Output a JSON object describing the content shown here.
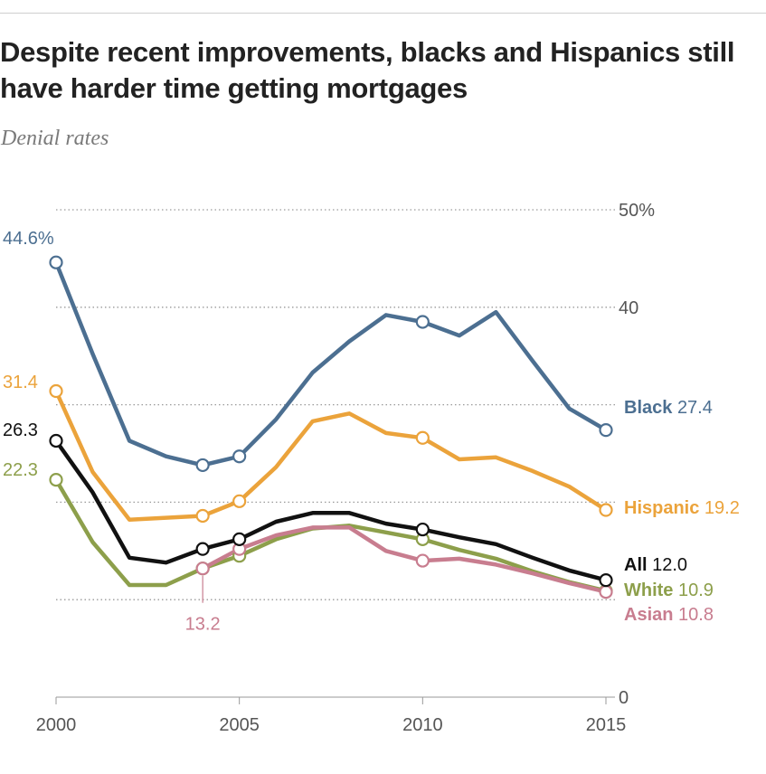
{
  "title": "Despite recent improvements, blacks and Hispanics still have harder time getting mortgages",
  "subtitle": "Denial rates",
  "chart_data": {
    "type": "line",
    "x": [
      2000,
      2001,
      2002,
      2003,
      2004,
      2005,
      2006,
      2007,
      2008,
      2009,
      2010,
      2011,
      2012,
      2013,
      2014,
      2015
    ],
    "xticks": [
      "2000",
      "2005",
      "2010",
      "2015"
    ],
    "xlim": [
      2000,
      2015
    ],
    "ylim": [
      0,
      50
    ],
    "yticks": [
      {
        "value": 0,
        "label": "0"
      },
      {
        "value": 10,
        "label": ""
      },
      {
        "value": 20,
        "label": ""
      },
      {
        "value": 30,
        "label": ""
      },
      {
        "value": 40,
        "label": "40"
      },
      {
        "value": 50,
        "label": "50%"
      }
    ],
    "grid": true,
    "markers_at": [
      2000,
      2004,
      2005,
      2010,
      2015
    ],
    "series": [
      {
        "key": "black",
        "name": "Black",
        "end_label": "27.4",
        "start_label": "44.6%",
        "color": "#4c6f91",
        "values": [
          44.6,
          35.2,
          26.3,
          24.7,
          23.8,
          24.7,
          28.5,
          33.3,
          36.5,
          39.2,
          38.5,
          37.1,
          39.5,
          34.5,
          29.6,
          27.4
        ]
      },
      {
        "key": "hispanic",
        "name": "Hispanic",
        "end_label": "19.2",
        "start_label": "31.4",
        "color": "#eba33b",
        "values": [
          31.4,
          23.1,
          18.2,
          18.4,
          18.6,
          20.1,
          23.6,
          28.3,
          29.1,
          27.1,
          26.6,
          24.4,
          24.6,
          23.2,
          21.6,
          19.2
        ]
      },
      {
        "key": "all",
        "name": "All",
        "end_label": "12.0",
        "start_label": "26.3",
        "color": "#111111",
        "values": [
          26.3,
          21.0,
          14.3,
          13.8,
          15.2,
          16.2,
          18.0,
          18.9,
          18.9,
          17.8,
          17.2,
          16.4,
          15.7,
          14.3,
          13.0,
          12.0
        ]
      },
      {
        "key": "white",
        "name": "White",
        "end_label": "10.9",
        "start_label": "22.3",
        "color": "#8d9f4b",
        "values": [
          22.3,
          15.9,
          11.5,
          11.5,
          13.2,
          14.5,
          16.2,
          17.3,
          17.6,
          16.9,
          16.2,
          15.1,
          14.2,
          12.9,
          11.8,
          10.9
        ]
      },
      {
        "key": "asian",
        "name": "Asian",
        "end_label": "10.8",
        "start_label": "",
        "callout_label": "13.2",
        "callout_x": 2004,
        "color": "#c87d8f",
        "values": [
          null,
          null,
          null,
          null,
          13.2,
          15.2,
          16.6,
          17.4,
          17.4,
          15.0,
          14.0,
          14.2,
          13.6,
          12.7,
          11.7,
          10.8
        ]
      }
    ]
  }
}
